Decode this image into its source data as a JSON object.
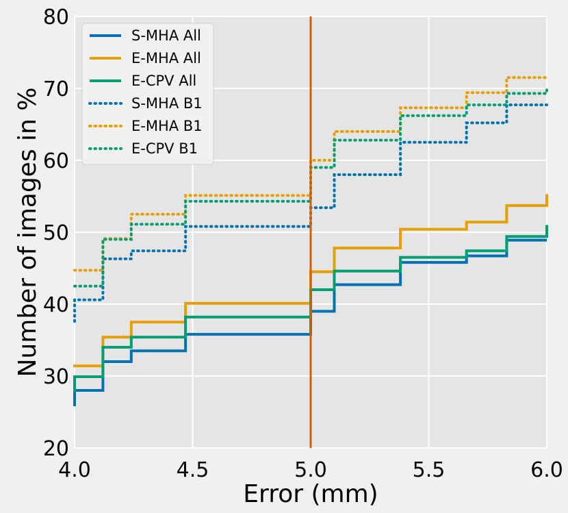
{
  "chart_data": {
    "type": "line",
    "title": "",
    "xlabel": "Error (mm)",
    "ylabel": "Number of images in %",
    "xlim": [
      4.0,
      6.0
    ],
    "ylim": [
      20,
      80
    ],
    "grid": true,
    "legend_position": "top-left",
    "x_ticks": [
      4.0,
      4.5,
      5.0,
      5.5,
      6.0
    ],
    "x_tick_labels": [
      "4.0",
      "4.5",
      "5.0",
      "5.5",
      "6.0"
    ],
    "y_ticks": [
      20,
      30,
      40,
      50,
      60,
      70,
      80
    ],
    "y_tick_labels": [
      "20",
      "30",
      "40",
      "50",
      "60",
      "70",
      "80"
    ],
    "vline": {
      "x": 5.0,
      "color": "#d55e00"
    },
    "series": [
      {
        "name": "S-MHA All",
        "color": "#0072b2",
        "style": "solid",
        "points": [
          [
            4.0,
            25.8
          ],
          [
            4.0,
            28.0
          ],
          [
            4.12,
            28.0
          ],
          [
            4.12,
            32.0
          ],
          [
            4.24,
            32.0
          ],
          [
            4.24,
            33.5
          ],
          [
            4.47,
            33.5
          ],
          [
            4.47,
            35.8
          ],
          [
            5.0,
            35.8
          ],
          [
            5.0,
            39.0
          ],
          [
            5.1,
            39.0
          ],
          [
            5.1,
            42.7
          ],
          [
            5.38,
            42.7
          ],
          [
            5.38,
            45.8
          ],
          [
            5.66,
            45.8
          ],
          [
            5.66,
            46.7
          ],
          [
            5.83,
            46.7
          ],
          [
            5.83,
            48.9
          ],
          [
            6.0,
            48.9
          ]
        ]
      },
      {
        "name": "E-MHA All",
        "color": "#e69f00",
        "style": "solid",
        "points": [
          [
            4.0,
            31.2
          ],
          [
            4.0,
            31.4
          ],
          [
            4.12,
            31.4
          ],
          [
            4.12,
            35.4
          ],
          [
            4.24,
            35.4
          ],
          [
            4.24,
            37.5
          ],
          [
            4.47,
            37.5
          ],
          [
            4.47,
            40.1
          ],
          [
            5.0,
            40.1
          ],
          [
            5.0,
            44.5
          ],
          [
            5.1,
            44.5
          ],
          [
            5.1,
            47.8
          ],
          [
            5.38,
            47.8
          ],
          [
            5.38,
            50.4
          ],
          [
            5.66,
            50.4
          ],
          [
            5.66,
            51.4
          ],
          [
            5.83,
            51.4
          ],
          [
            5.83,
            53.7
          ],
          [
            6.0,
            53.7
          ],
          [
            6.0,
            55.3
          ]
        ]
      },
      {
        "name": "E-CPV All",
        "color": "#009e73",
        "style": "solid",
        "points": [
          [
            4.0,
            27.8
          ],
          [
            4.0,
            29.9
          ],
          [
            4.12,
            29.9
          ],
          [
            4.12,
            34.0
          ],
          [
            4.24,
            34.0
          ],
          [
            4.24,
            35.4
          ],
          [
            4.47,
            35.4
          ],
          [
            4.47,
            38.2
          ],
          [
            5.0,
            38.2
          ],
          [
            5.0,
            42.0
          ],
          [
            5.1,
            42.0
          ],
          [
            5.1,
            44.6
          ],
          [
            5.38,
            44.6
          ],
          [
            5.38,
            46.5
          ],
          [
            5.66,
            46.5
          ],
          [
            5.66,
            47.4
          ],
          [
            5.83,
            47.4
          ],
          [
            5.83,
            49.4
          ],
          [
            6.0,
            49.4
          ],
          [
            6.0,
            51.0
          ]
        ]
      },
      {
        "name": "S-MHA B1",
        "color": "#0072b2",
        "style": "dotted",
        "points": [
          [
            4.0,
            37.6
          ],
          [
            4.0,
            40.6
          ],
          [
            4.12,
            40.6
          ],
          [
            4.12,
            46.3
          ],
          [
            4.24,
            46.3
          ],
          [
            4.24,
            47.4
          ],
          [
            4.47,
            47.4
          ],
          [
            4.47,
            50.8
          ],
          [
            5.0,
            50.8
          ],
          [
            5.0,
            53.4
          ],
          [
            5.1,
            53.4
          ],
          [
            5.1,
            58.0
          ],
          [
            5.38,
            58.0
          ],
          [
            5.38,
            62.5
          ],
          [
            5.66,
            62.5
          ],
          [
            5.66,
            65.2
          ],
          [
            5.83,
            65.2
          ],
          [
            5.83,
            67.7
          ],
          [
            6.0,
            67.7
          ]
        ]
      },
      {
        "name": "E-MHA B1",
        "color": "#e69f00",
        "style": "dotted",
        "points": [
          [
            4.0,
            44.7
          ],
          [
            4.12,
            44.7
          ],
          [
            4.12,
            49.1
          ],
          [
            4.24,
            49.1
          ],
          [
            4.24,
            52.5
          ],
          [
            4.47,
            52.5
          ],
          [
            4.47,
            55.1
          ],
          [
            5.0,
            55.1
          ],
          [
            5.0,
            60.0
          ],
          [
            5.1,
            60.0
          ],
          [
            5.1,
            64.0
          ],
          [
            5.38,
            64.0
          ],
          [
            5.38,
            67.3
          ],
          [
            5.66,
            67.3
          ],
          [
            5.66,
            69.4
          ],
          [
            5.83,
            69.4
          ],
          [
            5.83,
            71.5
          ],
          [
            6.0,
            71.5
          ]
        ]
      },
      {
        "name": "E-CPV B1",
        "color": "#009e73",
        "style": "dotted",
        "points": [
          [
            4.0,
            42.5
          ],
          [
            4.12,
            42.5
          ],
          [
            4.12,
            49.0
          ],
          [
            4.24,
            49.0
          ],
          [
            4.24,
            51.1
          ],
          [
            4.47,
            51.1
          ],
          [
            4.47,
            54.3
          ],
          [
            5.0,
            54.3
          ],
          [
            5.0,
            59.0
          ],
          [
            5.1,
            59.0
          ],
          [
            5.1,
            62.8
          ],
          [
            5.38,
            62.8
          ],
          [
            5.38,
            66.2
          ],
          [
            5.66,
            66.2
          ],
          [
            5.66,
            67.7
          ],
          [
            5.83,
            67.7
          ],
          [
            5.83,
            69.3
          ],
          [
            6.0,
            69.3
          ],
          [
            6.0,
            70.0
          ]
        ]
      }
    ]
  }
}
